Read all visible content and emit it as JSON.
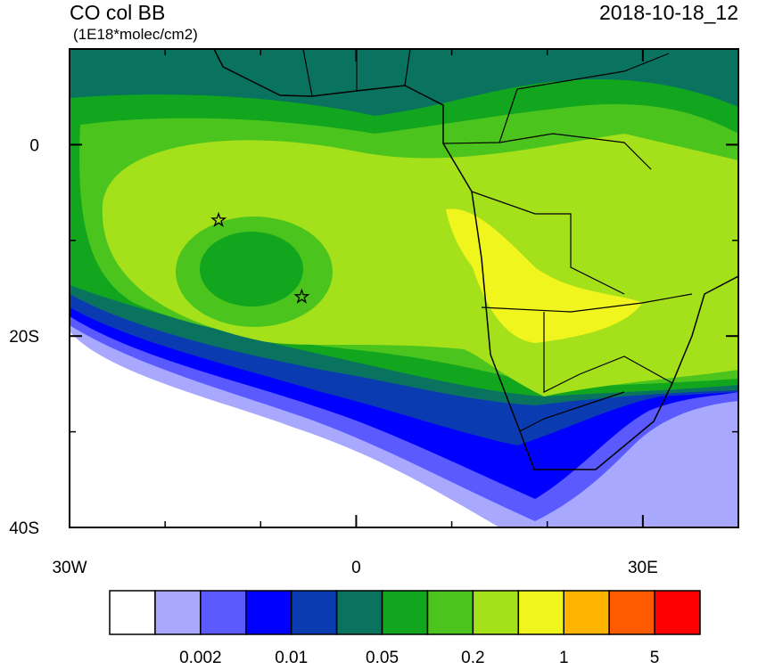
{
  "header": {
    "title": "CO col BB",
    "units": "(1E18*molec/cm2)",
    "date": "2018-10-18_12"
  },
  "map": {
    "lon_range": [
      -30,
      40
    ],
    "lat_range": [
      -40,
      10
    ],
    "lon_ticks": [
      {
        "value": -30,
        "label": "30W"
      },
      {
        "value": 0,
        "label": "0"
      },
      {
        "value": 30,
        "label": "30E"
      }
    ],
    "lat_ticks": [
      {
        "value": 0,
        "label": "0"
      },
      {
        "value": -20,
        "label": "20S"
      },
      {
        "value": -40,
        "label": "40S"
      }
    ],
    "stars": [
      {
        "lon": -14.4,
        "lat": -7.9
      },
      {
        "lon": -5.7,
        "lat": -15.9
      }
    ]
  },
  "colorbar": {
    "colors": [
      "#ffffff",
      "#a8a8ff",
      "#5a5aff",
      "#0000ff",
      "#0a3bb0",
      "#0a7360",
      "#12a51e",
      "#4cc41e",
      "#a5e11a",
      "#f0f51e",
      "#ffb400",
      "#ff5a00",
      "#ff0000"
    ],
    "labels": [
      "0.002",
      "0.01",
      "0.05",
      "0.2",
      "1",
      "5"
    ]
  }
}
